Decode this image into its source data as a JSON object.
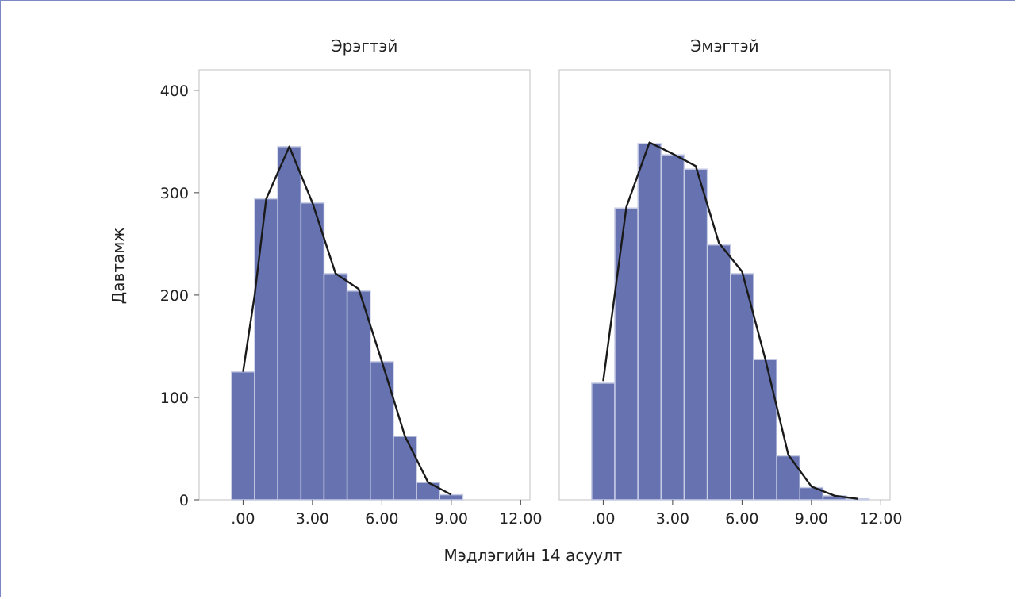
{
  "chart_data": {
    "type": "bar",
    "xlabel": "Мэдлэгийн 14 асуулт",
    "ylabel": "Давтамж",
    "ylim": [
      0,
      420
    ],
    "yticks": [
      0,
      100,
      200,
      300,
      400
    ],
    "xlim": [
      -1.9,
      12.4
    ],
    "xticks": [
      0,
      3,
      6,
      9,
      12
    ],
    "xtick_labels": [
      ".00",
      "3.00",
      "6.00",
      "9.00",
      "12.00"
    ],
    "bin_width": 1,
    "grid": false,
    "colors": {
      "bar": "#6673b0",
      "bar_edge": "#c8cde6",
      "line": "#1a1a1a",
      "panel_border": "#cccccc"
    },
    "panels": [
      {
        "title": "Эрэгтэй",
        "bins": [
          0,
          1,
          2,
          3,
          4,
          5,
          6,
          7,
          8,
          9
        ],
        "values": [
          125,
          294,
          345,
          290,
          221,
          204,
          135,
          62,
          17,
          5
        ],
        "curve": [
          [
            0,
            125
          ],
          [
            0.5,
            200
          ],
          [
            1,
            294
          ],
          [
            2,
            345
          ],
          [
            3,
            290
          ],
          [
            4,
            221
          ],
          [
            5,
            206
          ],
          [
            6,
            135
          ],
          [
            7,
            62
          ],
          [
            8,
            17
          ],
          [
            9,
            5
          ]
        ]
      },
      {
        "title": "Эмэгтэй",
        "bins": [
          0,
          1,
          2,
          3,
          4,
          5,
          6,
          7,
          8,
          9,
          10,
          11
        ],
        "values": [
          114,
          285,
          348,
          337,
          323,
          249,
          221,
          137,
          43,
          12,
          4,
          1
        ],
        "curve": [
          [
            0,
            116
          ],
          [
            1,
            286
          ],
          [
            2,
            349
          ],
          [
            3,
            338
          ],
          [
            4,
            326
          ],
          [
            5,
            251
          ],
          [
            6,
            223
          ],
          [
            7,
            138
          ],
          [
            8,
            44
          ],
          [
            9,
            13
          ],
          [
            10,
            4
          ],
          [
            11,
            1
          ]
        ]
      }
    ]
  }
}
